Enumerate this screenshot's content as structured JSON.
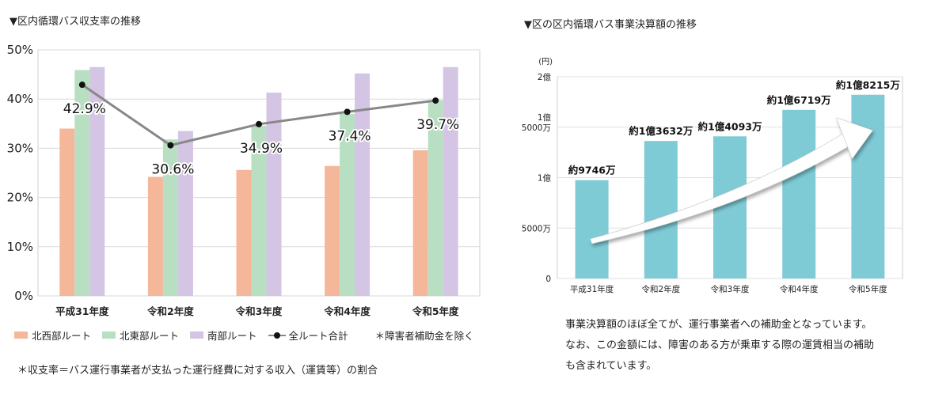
{
  "chart_data": [
    {
      "type": "bar",
      "title": "▼区内循環バス収支率の推移",
      "categories": [
        "平成31年度",
        "令和2年度",
        "令和3年度",
        "令和4年度",
        "令和5年度"
      ],
      "series": [
        {
          "name": "北西部ルート",
          "type": "bar",
          "color": "#f5b79a",
          "values": [
            34.0,
            24.2,
            25.6,
            26.4,
            29.6
          ]
        },
        {
          "name": "北東部ルート",
          "type": "bar",
          "color": "#b9dfc3",
          "values": [
            45.9,
            31.8,
            34.6,
            37.0,
            39.8
          ]
        },
        {
          "name": "南部ルート",
          "type": "bar",
          "color": "#d3c5e3",
          "values": [
            46.5,
            33.5,
            41.3,
            45.2,
            46.5
          ]
        },
        {
          "name": "全ルート合計",
          "type": "line",
          "color": "#888888",
          "values": [
            42.9,
            30.6,
            34.9,
            37.4,
            39.7
          ]
        }
      ],
      "data_labels": [
        "42.9%",
        "30.6%",
        "34.9%",
        "37.4%",
        "39.7%"
      ],
      "yticks": [
        "0%",
        "10%",
        "20%",
        "30%",
        "40%",
        "50%"
      ],
      "ylim": [
        0,
        50
      ],
      "grid": true,
      "legend_position": "bottom",
      "legend_note": "＊障害者補助金を除く",
      "footnote": "＊収支率＝バス運行事業者が支払った運行経費に対する収入（運賃等）の割合"
    },
    {
      "type": "bar",
      "title": "▼区の区内循環バス事業決算額の推移",
      "unit": "(円)",
      "categories": [
        "平成31年度",
        "令和2年度",
        "令和3年度",
        "令和4年度",
        "令和5年度"
      ],
      "values": [
        97460000,
        136320000,
        140930000,
        167190000,
        182150000
      ],
      "data_labels": [
        "約9746万",
        "約1億3632万",
        "約1億4093万",
        "約1億6719万",
        "約1億8215万"
      ],
      "color": "#7ecbd6",
      "ylim": [
        0,
        200000000
      ],
      "yticks": [
        {
          "value": 0,
          "lines": [
            "0"
          ]
        },
        {
          "value": 50000000,
          "lines": [
            "5000万"
          ]
        },
        {
          "value": 100000000,
          "lines": [
            "1億"
          ]
        },
        {
          "value": 150000000,
          "lines": [
            "1億",
            "5000万"
          ]
        },
        {
          "value": 200000000,
          "lines": [
            "2億"
          ]
        }
      ],
      "grid": true,
      "trend_arrow": true,
      "note_lines": [
        "事業決算額のほぼ全てが、運行事業者への補助金となっています。",
        "なお、この金額には、障害のある方が乗車する際の運賃相当の補助",
        "も含まれています。"
      ]
    }
  ]
}
